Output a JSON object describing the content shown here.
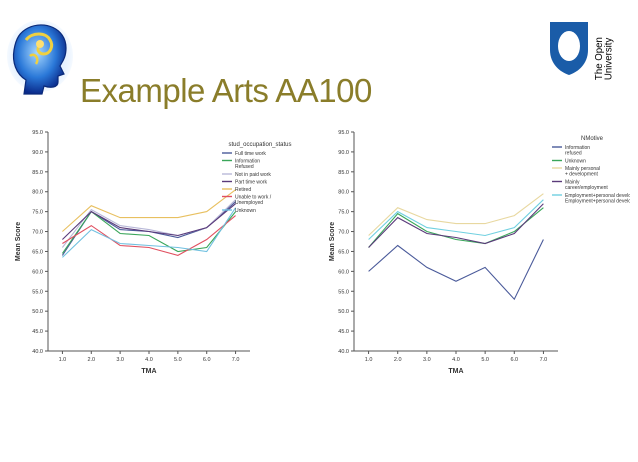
{
  "slide": {
    "title": "Example Arts AA100"
  },
  "logo": {
    "line1": "The Open",
    "line2": "University"
  },
  "colors": {
    "title": "#8a7d2a",
    "ou_blue": "#1a5ca8"
  },
  "chart_data": [
    {
      "type": "line",
      "title": "",
      "xlabel": "TMA",
      "ylabel": "Mean Score",
      "x": [
        1.0,
        2.0,
        3.0,
        4.0,
        5.0,
        6.0,
        7.0
      ],
      "x_tick_labels": [
        "1.0",
        "2.0",
        "3.0",
        "4.0",
        "5.0",
        "6.0",
        "7.0"
      ],
      "xlim": [
        0.5,
        7.5
      ],
      "ylim": [
        40,
        95
      ],
      "y_ticks": [
        40,
        45,
        50,
        55,
        60,
        65,
        70,
        75,
        80,
        85,
        90,
        95
      ],
      "y_tick_labels": [
        "40.0",
        "45.0",
        "50.0",
        "55.0",
        "60.0",
        "65.0",
        "70.0",
        "75.0",
        "80.0",
        "85.0",
        "90.0",
        "95.0"
      ],
      "grid": false,
      "legend": {
        "title": "stud_occupation_status",
        "placement": "top-right",
        "entries": [
          "Full time work",
          "Information Refused",
          "Not in paid work",
          "Part time work",
          "Retired",
          "Unable to work / Unemployed",
          "Unknown"
        ]
      },
      "series": [
        {
          "name": "Full time work",
          "color": "#4a5a9a",
          "values": [
            64,
            75,
            70.5,
            70,
            68.5,
            71,
            77.5
          ]
        },
        {
          "name": "Information Refused",
          "color": "#3aa65a",
          "values": [
            64.5,
            75,
            69.5,
            69,
            65,
            66,
            75
          ]
        },
        {
          "name": "Not in paid work",
          "color": "#b8b8d8",
          "values": [
            66,
            75.5,
            71.5,
            70.5,
            69,
            71,
            78
          ]
        },
        {
          "name": "Part time work",
          "color": "#5a3a7a",
          "values": [
            68,
            75,
            71,
            70,
            69,
            71,
            77
          ]
        },
        {
          "name": "Retired",
          "color": "#e8c060",
          "values": [
            70,
            76.5,
            73.5,
            73.5,
            73.5,
            75,
            80.5
          ]
        },
        {
          "name": "Unable to work / Unemployed",
          "color": "#e05060",
          "values": [
            67,
            71.5,
            66.5,
            66,
            64,
            68,
            74
          ]
        },
        {
          "name": "Unknown",
          "color": "#70c0e0",
          "values": [
            63.5,
            70.5,
            67,
            66.5,
            66,
            65,
            76
          ]
        }
      ]
    },
    {
      "type": "line",
      "title": "",
      "xlabel": "TMA",
      "ylabel": "Mean Score",
      "x": [
        1.0,
        2.0,
        3.0,
        4.0,
        5.0,
        6.0,
        7.0
      ],
      "x_tick_labels": [
        "1.0",
        "2.0",
        "3.0",
        "4.0",
        "5.0",
        "6.0",
        "7.0"
      ],
      "xlim": [
        0.5,
        7.5
      ],
      "ylim": [
        40,
        95
      ],
      "y_ticks": [
        40,
        45,
        50,
        55,
        60,
        65,
        70,
        75,
        80,
        85,
        90,
        95
      ],
      "y_tick_labels": [
        "40.0",
        "45.0",
        "50.0",
        "55.0",
        "60.0",
        "65.0",
        "70.0",
        "75.0",
        "80.0",
        "85.0",
        "90.0",
        "95.0"
      ],
      "grid": false,
      "legend": {
        "title": "NMotive",
        "placement": "top-right",
        "entries": [
          "Information refused",
          "Unknown",
          "Mainly personal + development",
          "Mainly career/employment",
          "Employment+personal development"
        ]
      },
      "series": [
        {
          "name": "Information refused",
          "color": "#4a5a9a",
          "values": [
            60,
            66.5,
            61,
            57.5,
            61,
            53,
            68
          ]
        },
        {
          "name": "Unknown",
          "color": "#3aa65a",
          "values": [
            66,
            74.5,
            70,
            68,
            67,
            70,
            76
          ]
        },
        {
          "name": "Mainly personal + development",
          "color": "#e8d8a0",
          "values": [
            69,
            76,
            73,
            72,
            72,
            74,
            79.5
          ]
        },
        {
          "name": "Mainly career/employment",
          "color": "#5a3a7a",
          "values": [
            66,
            73.5,
            69.5,
            68.5,
            67,
            69.5,
            77
          ]
        },
        {
          "name": "Employment+personal development",
          "color": "#70d0e0",
          "values": [
            68,
            75,
            71,
            70,
            69,
            71,
            78
          ]
        }
      ]
    }
  ]
}
